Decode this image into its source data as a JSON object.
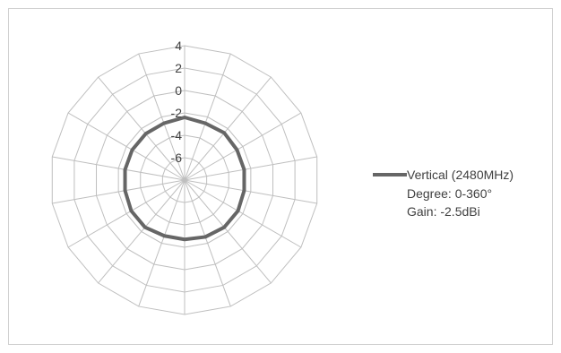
{
  "chart_data": {
    "type": "radar",
    "title": "",
    "radial_ticks": [
      "-6",
      "-4",
      "-2",
      "0",
      "2",
      "4"
    ],
    "rlim": [
      -8,
      4
    ],
    "angle_count": 18,
    "grid": true,
    "legend_position": "right",
    "series": [
      {
        "name": "Vertical (2480MHz)",
        "color": "#666666",
        "values": [
          -2.4,
          -2.6,
          -2.5,
          -2.6,
          -2.6,
          -2.6,
          -2.5,
          -2.5,
          -2.6,
          -2.7,
          -2.7,
          -2.5,
          -2.5,
          -2.6,
          -2.6,
          -2.6,
          -2.6,
          -2.6
        ]
      }
    ],
    "annotations": [
      "Degree: 0-360°",
      "Gain: -2.5dBi"
    ]
  },
  "legend": {
    "series_label": "Vertical (2480MHz)",
    "line2": "Degree: 0-360°",
    "line3": "Gain: -2.5dBi"
  },
  "colors": {
    "grid": "#bfbfbf",
    "series": "#666666",
    "text": "#404040"
  }
}
